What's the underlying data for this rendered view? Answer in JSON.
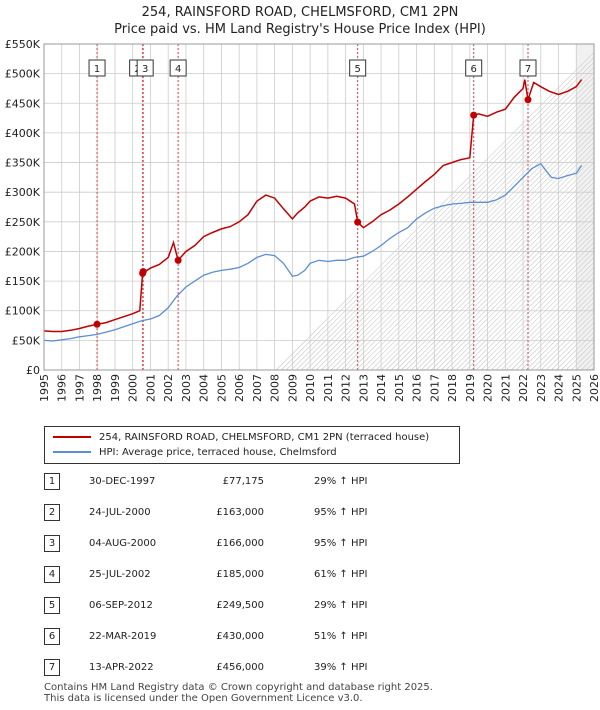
{
  "title_line1": "254, RAINSFORD ROAD, CHELMSFORD, CM1 2PN",
  "title_line2": "Price paid vs. HM Land Registry's House Price Index (HPI)",
  "legend": {
    "property": "254, RAINSFORD ROAD, CHELMSFORD, CM1 2PN (terraced house)",
    "hpi": "HPI: Average price, terraced house, Chelmsford"
  },
  "colors": {
    "property": "#c00000",
    "hpi": "#5b8fd1",
    "shade": "#dde6f5",
    "grid": "#cccccc"
  },
  "sales": [
    {
      "num": "1",
      "date": "30-DEC-1997",
      "price": "£77,175",
      "hpi": "29% ↑ HPI"
    },
    {
      "num": "2",
      "date": "24-JUL-2000",
      "price": "£163,000",
      "hpi": "95% ↑ HPI"
    },
    {
      "num": "3",
      "date": "04-AUG-2000",
      "price": "£166,000",
      "hpi": "95% ↑ HPI"
    },
    {
      "num": "4",
      "date": "25-JUL-2002",
      "price": "£185,000",
      "hpi": "61% ↑ HPI"
    },
    {
      "num": "5",
      "date": "06-SEP-2012",
      "price": "£249,500",
      "hpi": "29% ↑ HPI"
    },
    {
      "num": "6",
      "date": "22-MAR-2019",
      "price": "£430,000",
      "hpi": "51% ↑ HPI"
    },
    {
      "num": "7",
      "date": "13-APR-2022",
      "price": "£456,000",
      "hpi": "39% ↑ HPI"
    }
  ],
  "footer_line1": "Contains HM Land Registry data © Crown copyright and database right 2025.",
  "footer_line2": "This data is licensed under the Open Government Licence v3.0.",
  "chart_data": {
    "type": "line",
    "title": "254, RAINSFORD ROAD, CHELMSFORD, CM1 2PN — Price paid vs. HM Land Registry's House Price Index (HPI)",
    "xlabel": "",
    "ylabel": "",
    "xlim": [
      1995,
      2026
    ],
    "ylim": [
      0,
      550000
    ],
    "yticks": [
      0,
      50000,
      100000,
      150000,
      200000,
      250000,
      300000,
      350000,
      400000,
      450000,
      500000,
      550000
    ],
    "ytick_labels": [
      "£0",
      "£50K",
      "£100K",
      "£150K",
      "£200K",
      "£250K",
      "£300K",
      "£350K",
      "£400K",
      "£450K",
      "£500K",
      "£550K"
    ],
    "xticks": [
      1995,
      1996,
      1997,
      1998,
      1999,
      2000,
      2001,
      2002,
      2003,
      2004,
      2005,
      2006,
      2007,
      2008,
      2009,
      2010,
      2011,
      2012,
      2013,
      2014,
      2015,
      2016,
      2017,
      2018,
      2019,
      2020,
      2021,
      2022,
      2023,
      2024,
      2025,
      2026
    ],
    "future_from": 2025.0,
    "series": [
      {
        "name": "HPI: Average price, terraced house, Chelmsford",
        "x": [
          1995,
          1995.5,
          1996,
          1996.5,
          1997,
          1997.5,
          1998,
          1998.5,
          1999,
          1999.5,
          2000,
          2000.5,
          2001,
          2001.5,
          2002,
          2002.5,
          2003,
          2003.5,
          2004,
          2004.5,
          2005,
          2005.5,
          2006,
          2006.5,
          2007,
          2007.5,
          2008,
          2008.5,
          2009,
          2009.3,
          2009.7,
          2010,
          2010.5,
          2011,
          2011.5,
          2012,
          2012.5,
          2013,
          2013.5,
          2014,
          2014.5,
          2015,
          2015.5,
          2016,
          2016.5,
          2017,
          2017.5,
          2018,
          2018.5,
          2019,
          2019.5,
          2020,
          2020.5,
          2021,
          2021.5,
          2022,
          2022.5,
          2023,
          2023.3,
          2023.6,
          2024,
          2024.5,
          2025,
          2025.3
        ],
        "values": [
          50000,
          49000,
          51000,
          53000,
          56000,
          58000,
          60000,
          64000,
          68000,
          73000,
          78000,
          83000,
          86000,
          92000,
          105000,
          125000,
          140000,
          150000,
          160000,
          165000,
          168000,
          170000,
          173000,
          180000,
          190000,
          195000,
          193000,
          180000,
          158000,
          160000,
          168000,
          180000,
          185000,
          183000,
          185000,
          185000,
          190000,
          192000,
          200000,
          210000,
          222000,
          232000,
          240000,
          255000,
          265000,
          273000,
          277000,
          280000,
          281000,
          283000,
          283000,
          283000,
          287000,
          295000,
          310000,
          325000,
          340000,
          348000,
          336000,
          325000,
          323000,
          328000,
          332000,
          345000
        ]
      },
      {
        "name": "254, RAINSFORD ROAD, CHELMSFORD, CM1 2PN (terraced house)",
        "x": [
          1995,
          1995.5,
          1996,
          1996.5,
          1997,
          1997.5,
          1997.99,
          1998.5,
          1999,
          1999.5,
          2000,
          2000.4,
          2000.56,
          2000.59,
          2000.8,
          2001,
          2001.5,
          2002,
          2002.3,
          2002.56,
          2003,
          2003.5,
          2004,
          2004.5,
          2005,
          2005.5,
          2006,
          2006.5,
          2007,
          2007.5,
          2008,
          2008.5,
          2009,
          2009.3,
          2009.7,
          2010,
          2010.5,
          2011,
          2011.5,
          2012,
          2012.5,
          2012.68,
          2013,
          2013.5,
          2014,
          2014.5,
          2015,
          2015.5,
          2016,
          2016.5,
          2017,
          2017.5,
          2018,
          2018.5,
          2019,
          2019.22,
          2019.5,
          2020,
          2020.5,
          2021,
          2021.5,
          2022,
          2022.1,
          2022.28,
          2022.6,
          2023,
          2023.5,
          2024,
          2024.5,
          2025,
          2025.3
        ],
        "values": [
          66000,
          65000,
          65000,
          67000,
          70000,
          74000,
          77175,
          80000,
          85000,
          90000,
          95000,
          100000,
          163000,
          166000,
          168000,
          172000,
          178000,
          190000,
          215000,
          185000,
          200000,
          210000,
          225000,
          232000,
          238000,
          242000,
          250000,
          262000,
          285000,
          295000,
          290000,
          272000,
          255000,
          265000,
          275000,
          285000,
          292000,
          290000,
          293000,
          290000,
          280000,
          249500,
          240000,
          250000,
          262000,
          270000,
          280000,
          292000,
          305000,
          318000,
          330000,
          345000,
          350000,
          355000,
          358000,
          430000,
          432000,
          428000,
          435000,
          440000,
          460000,
          475000,
          490000,
          456000,
          485000,
          478000,
          470000,
          465000,
          470000,
          478000,
          490000
        ]
      }
    ],
    "sale_points": [
      {
        "label": "1",
        "x": 1997.99,
        "value": 77175
      },
      {
        "label": "2",
        "x": 2000.56,
        "value": 163000
      },
      {
        "label": "3",
        "x": 2000.59,
        "value": 166000
      },
      {
        "label": "4",
        "x": 2002.56,
        "value": 185000
      },
      {
        "label": "5",
        "x": 2012.68,
        "value": 249500
      },
      {
        "label": "6",
        "x": 2019.22,
        "value": 430000
      },
      {
        "label": "7",
        "x": 2022.28,
        "value": 456000
      }
    ]
  }
}
